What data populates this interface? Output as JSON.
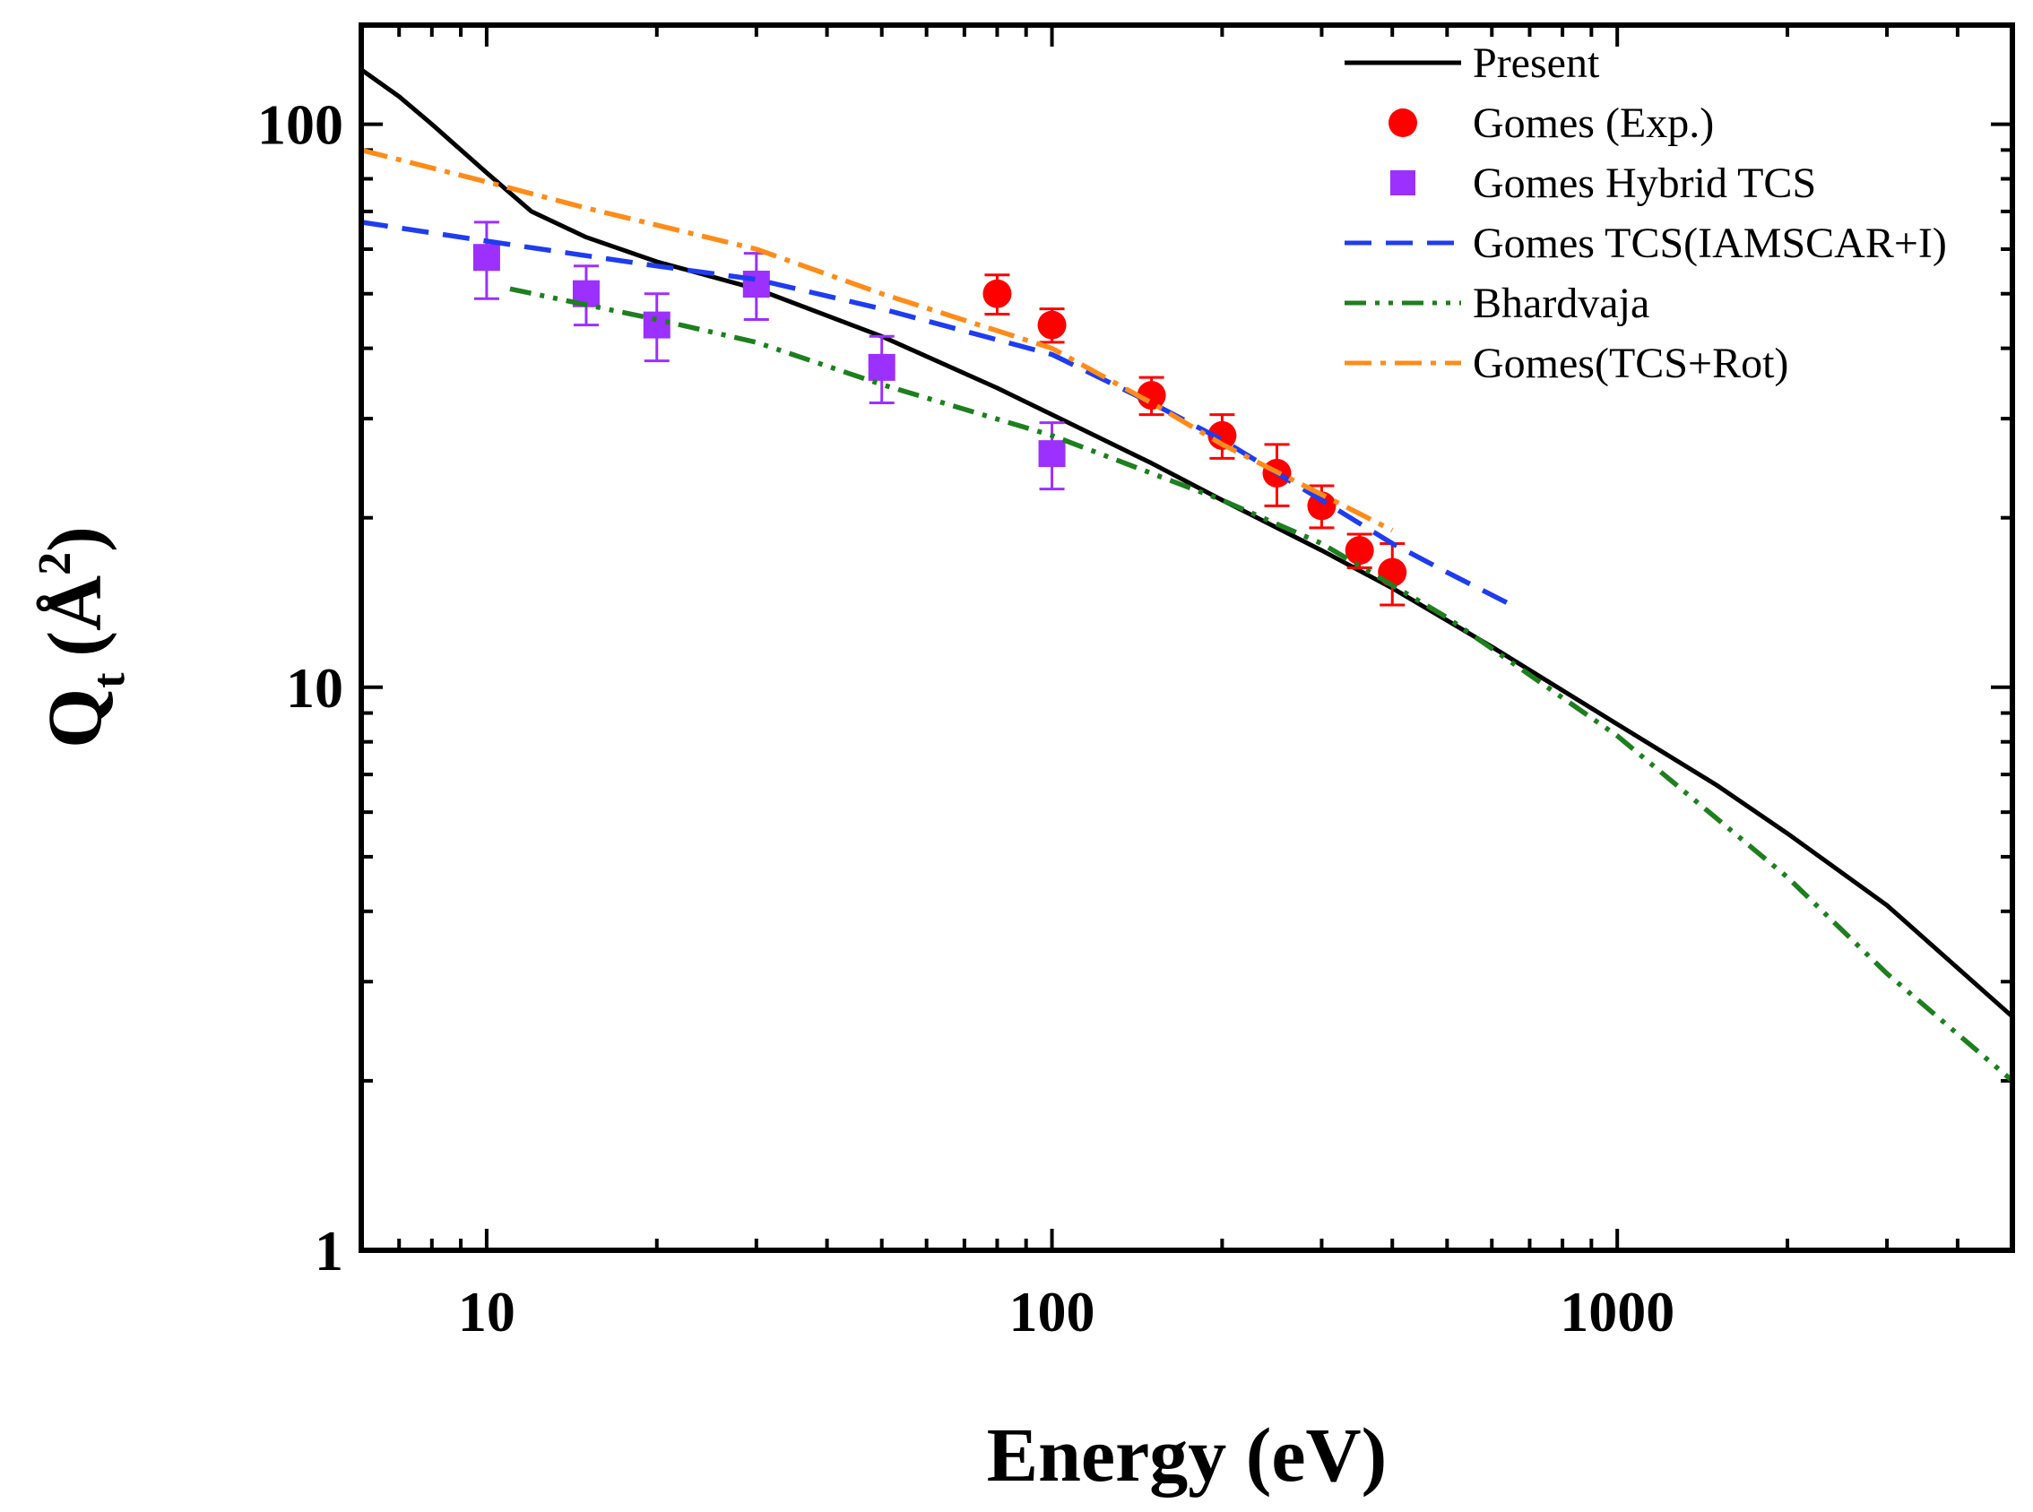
{
  "chart_data": {
    "type": "line",
    "title": "",
    "xlabel": "Energy (eV)",
    "ylabel": {
      "main": "Q",
      "subscript": "t",
      "unit": "(Å",
      "superscript": "2",
      "close": ")"
    },
    "xscale": "log",
    "yscale": "log",
    "xlim": [
      6,
      5000
    ],
    "ylim": [
      1,
      150
    ],
    "x_ticks": [
      {
        "value": 10,
        "label": "10"
      },
      {
        "value": 100,
        "label": "100"
      },
      {
        "value": 1000,
        "label": "1000"
      }
    ],
    "y_ticks": [
      {
        "value": 1,
        "label": "1"
      },
      {
        "value": 10,
        "label": "10"
      },
      {
        "value": 100,
        "label": "100"
      }
    ],
    "legend_position": "top-right",
    "series": [
      {
        "name": "Present",
        "kind": "line",
        "color": "#000000",
        "dash": "solid",
        "x": [
          6,
          7,
          8,
          10,
          12,
          15,
          20,
          30,
          50,
          80,
          100,
          150,
          200,
          300,
          400,
          600,
          1000,
          1500,
          2000,
          3000,
          5000
        ],
        "y": [
          125,
          112,
          100,
          82,
          70,
          63,
          57,
          51,
          42,
          34,
          30.5,
          25,
          21.5,
          17.5,
          15,
          11.8,
          8.6,
          6.7,
          5.5,
          4.1,
          2.6
        ]
      },
      {
        "name": "Gomes (Exp.)",
        "kind": "points",
        "marker": "circle",
        "color": "#ff0000",
        "x": [
          80,
          100,
          150,
          200,
          250,
          300,
          350,
          400
        ],
        "y": [
          50,
          44,
          33,
          28,
          24,
          21,
          17.5,
          16
        ],
        "err": [
          4,
          3,
          2.5,
          2.5,
          3,
          1.8,
          1.2,
          2
        ]
      },
      {
        "name": "Gomes Hybrid TCS",
        "kind": "points",
        "marker": "square",
        "color": "#9b30ff",
        "x": [
          10,
          15,
          20,
          30,
          50,
          100
        ],
        "y": [
          58,
          50,
          44,
          52,
          37,
          26
        ],
        "err": [
          9,
          6,
          6,
          7,
          5,
          3.5
        ]
      },
      {
        "name": "Gomes TCS(IAMSCAR+I)",
        "kind": "line",
        "color": "#1f3cf0",
        "dash": "long-dash",
        "x": [
          6,
          10,
          20,
          30,
          50,
          100,
          150,
          200,
          300,
          400,
          500,
          650
        ],
        "y": [
          67,
          62,
          56,
          53,
          47,
          39,
          32,
          27.5,
          21.5,
          18,
          16,
          14
        ]
      },
      {
        "name": "Bhardvaja",
        "kind": "line",
        "color": "#1e7f1e",
        "dash": "dash-dot-dot",
        "x": [
          11,
          20,
          30,
          50,
          100,
          200,
          300,
          500,
          1000,
          2000,
          3000,
          5000
        ],
        "y": [
          51,
          45,
          41,
          34.5,
          28,
          21.5,
          18,
          13.3,
          8.2,
          4.6,
          3.1,
          2
        ]
      },
      {
        "name": "Gomes(TCS+Rot)",
        "kind": "line",
        "color": "#ff8c1a",
        "dash": "dash-dot",
        "x": [
          6,
          10,
          15,
          30,
          50,
          100,
          150,
          200,
          300,
          400
        ],
        "y": [
          90,
          79,
          71,
          60,
          50,
          40,
          32,
          27,
          22,
          19
        ]
      }
    ]
  }
}
